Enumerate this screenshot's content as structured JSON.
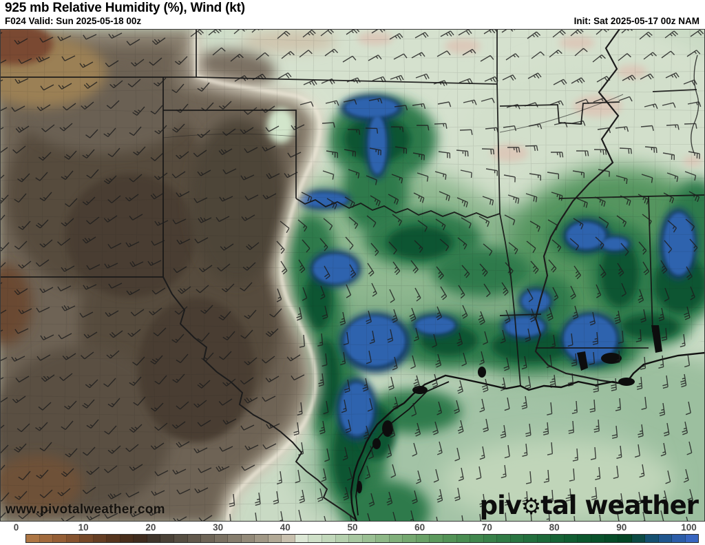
{
  "header": {
    "title": "925 mb Relative Humidity (%), Wind (kt)",
    "forecast_hour_valid": "F024 Valid: Sun 2025-05-18 00z",
    "init": "Init: Sat 2025-05-17 00z NAM"
  },
  "map": {
    "watermark": "www.pivotalweather.com",
    "logo": {
      "pre": "piv",
      "gear": "⚙",
      "post": "tal weather"
    }
  },
  "colorbar": {
    "min": 0,
    "max": 100,
    "unit": "%",
    "tick_labels": [
      "0",
      "10",
      "20",
      "30",
      "40",
      "50",
      "60",
      "70",
      "80",
      "90",
      "100"
    ],
    "segment_colors": [
      "#ad7644",
      "#a16a3d",
      "#955f36",
      "#85532f",
      "#754828",
      "#653e23",
      "#56351e",
      "#492f1c",
      "#3f2c1e",
      "#3f352b",
      "#4a4237",
      "#564e42",
      "#62594c",
      "#6e6557",
      "#7a7162",
      "#867d6d",
      "#938a79",
      "#a19886",
      "#b2a996",
      "#c8c0ae",
      "#dce7d5",
      "#cfe0c8",
      "#c2d8bb",
      "#b5d0ae",
      "#a8c8a1",
      "#9bc094",
      "#8eb887",
      "#81b07b",
      "#75a870",
      "#69a167",
      "#5d9a5e",
      "#539357",
      "#4a8d52",
      "#41874e",
      "#39814a",
      "#317b46",
      "#2a7542",
      "#236f3e",
      "#1d693a",
      "#176336",
      "#115d32",
      "#0c572e",
      "#09512b",
      "#064b28",
      "#044525",
      "#0c4a44",
      "#155070",
      "#20568e",
      "#2c5da8",
      "#3866c0"
    ]
  },
  "field_colors": {
    "dry_brown_core": "#574c3e",
    "moist_green_band": "#2d7a4b",
    "saturated_blue": "#2f63ae",
    "transition_cream": "#e8e1d0"
  }
}
